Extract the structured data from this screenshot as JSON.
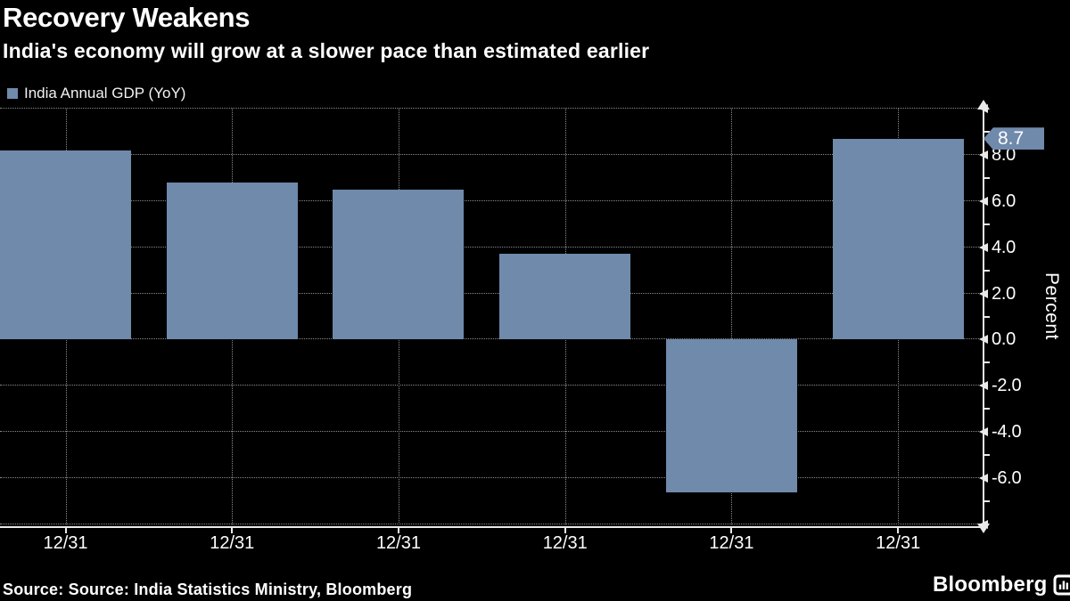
{
  "header": {
    "title": "Recovery Weakens",
    "subtitle": "India's economy will grow at a slower pace than estimated earlier"
  },
  "legend": {
    "label": "India Annual GDP (YoY)"
  },
  "chart_data": {
    "type": "bar",
    "title": "Recovery Weakens",
    "subtitle": "India's economy will grow at a slower pace than estimated earlier",
    "series_name": "India Annual GDP (YoY)",
    "categories": [
      "12/31",
      "12/31",
      "12/31",
      "12/31",
      "12/31",
      "12/31"
    ],
    "values": [
      8.2,
      6.8,
      6.5,
      3.7,
      -6.6,
      8.7
    ],
    "xlabel": "",
    "ylabel": "Percent",
    "ylim": [
      -8,
      10
    ],
    "grid": "dotted",
    "grid_values": [
      10,
      8,
      6,
      4,
      2,
      0,
      -2,
      -4,
      -6,
      -8
    ],
    "yticks": [
      {
        "value": 8,
        "label": "8.0"
      },
      {
        "value": 6,
        "label": "6.0"
      },
      {
        "value": 4,
        "label": "4.0"
      },
      {
        "value": 2,
        "label": "2.0"
      },
      {
        "value": 0,
        "label": "0.0"
      },
      {
        "value": -2,
        "label": "-2.0"
      },
      {
        "value": -4,
        "label": "-4.0"
      },
      {
        "value": -6,
        "label": "-6.0"
      }
    ],
    "minor_ticks": [
      9,
      7,
      5,
      3,
      1,
      -1,
      -3,
      -5,
      -7
    ],
    "bar_color": "#6f8aab",
    "last_point_label": "8.7",
    "legend_position": "top-left"
  },
  "footer": {
    "source": "Source: Source: India Statistics Ministry, Bloomberg",
    "logo_text": "Bloomberg"
  },
  "colors": {
    "background": "#000000",
    "text": "#ffffff",
    "bar": "#6f8aab",
    "grid": "#8b8b8b",
    "axis": "#e9e9e9"
  }
}
